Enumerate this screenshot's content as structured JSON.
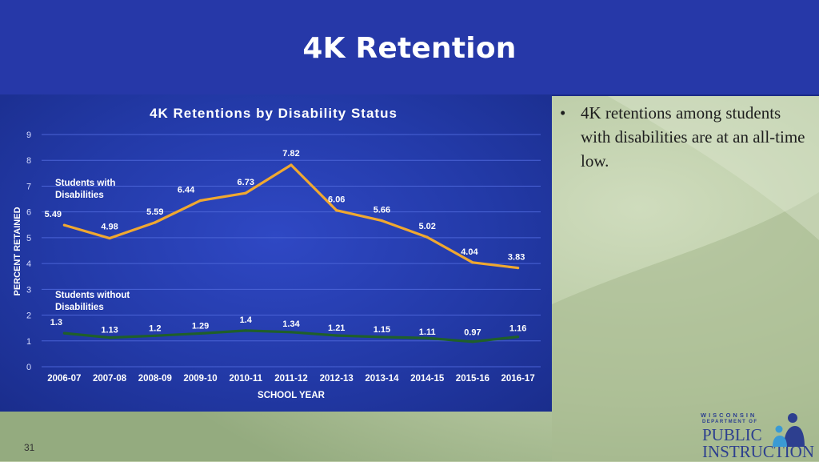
{
  "slide": {
    "title": "4K Retention",
    "bullet": "4K retentions among students with disabilities are at an all-time low.",
    "bullet_marker": "•",
    "page_number": "31"
  },
  "logo": {
    "line1": "WISCONSIN",
    "line2": "DEPARTMENT OF",
    "line3": "PUBLIC",
    "line4": "INSTRUCTION"
  },
  "colors": {
    "header": "#2638a8",
    "panel": "#233aa8",
    "series_with": "#f0a830",
    "series_without": "#1f5f2a"
  },
  "chart_data": {
    "type": "line",
    "title": "4K Retentions by Disability Status",
    "xlabel": "SCHOOL YEAR",
    "ylabel": "PERCENT RETAINED",
    "ylim": [
      0,
      9
    ],
    "yticks": [
      0,
      1,
      2,
      3,
      4,
      5,
      6,
      7,
      8,
      9
    ],
    "grid": true,
    "categories": [
      "2006-07",
      "2007-08",
      "2008-09",
      "2009-10",
      "2010-11",
      "2011-12",
      "2012-13",
      "2013-14",
      "2014-15",
      "2015-16",
      "2016-17"
    ],
    "series": [
      {
        "name": "Students with Disabilities",
        "name_lines": [
          "Students with",
          "Disabilities"
        ],
        "color": "#f0a830",
        "values": [
          5.49,
          4.98,
          5.59,
          6.44,
          6.73,
          7.82,
          6.06,
          5.66,
          5.02,
          4.04,
          3.83
        ],
        "labels": [
          "5.49",
          "4.98",
          "5.59",
          "6.44",
          "6.73",
          "7.82",
          "6.06",
          "5.66",
          "5.02",
          "4.04",
          "3.83"
        ]
      },
      {
        "name": "Students without Disabilities",
        "name_lines": [
          "Students without",
          "Disabilities"
        ],
        "color": "#1f5f2a",
        "values": [
          1.3,
          1.13,
          1.2,
          1.29,
          1.4,
          1.34,
          1.21,
          1.15,
          1.11,
          0.97,
          1.16
        ],
        "labels": [
          "1.3",
          "1.13",
          "1.2",
          "1.29",
          "1.4",
          "1.34",
          "1.21",
          "1.15",
          "1.11",
          "0.97",
          "1.16"
        ]
      }
    ]
  }
}
